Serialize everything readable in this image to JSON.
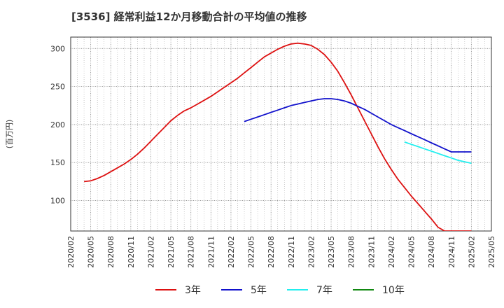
{
  "chart_data": {
    "type": "line",
    "title": "[3536]  経常利益12か月移動合計の平均値の推移",
    "ylabel": "(百万円)",
    "xlabel": "",
    "ylim": [
      60,
      315
    ],
    "yticks": [
      100,
      150,
      200,
      250,
      300
    ],
    "x_ticks": [
      "2020/02",
      "2020/05",
      "2020/08",
      "2020/11",
      "2021/02",
      "2021/05",
      "2021/08",
      "2021/11",
      "2022/02",
      "2022/05",
      "2022/08",
      "2022/11",
      "2023/02",
      "2023/05",
      "2023/08",
      "2023/11",
      "2024/02",
      "2024/05",
      "2024/08",
      "2024/11",
      "2025/02",
      "2025/05"
    ],
    "grid": true,
    "legend_position": "bottom",
    "series": [
      {
        "name": "3年",
        "color": "#dd1111",
        "x": [
          "2020/04",
          "2020/05",
          "2020/06",
          "2020/07",
          "2020/08",
          "2020/09",
          "2020/10",
          "2020/11",
          "2020/12",
          "2021/01",
          "2021/02",
          "2021/03",
          "2021/04",
          "2021/05",
          "2021/06",
          "2021/07",
          "2021/08",
          "2021/09",
          "2021/10",
          "2021/11",
          "2021/12",
          "2022/01",
          "2022/02",
          "2022/03",
          "2022/04",
          "2022/05",
          "2022/06",
          "2022/07",
          "2022/08",
          "2022/09",
          "2022/10",
          "2022/11",
          "2022/12",
          "2023/01",
          "2023/02",
          "2023/03",
          "2023/04",
          "2023/05",
          "2023/06",
          "2023/07",
          "2023/08",
          "2023/09",
          "2023/10",
          "2023/11",
          "2023/12",
          "2024/01",
          "2024/02",
          "2024/03",
          "2024/04",
          "2024/05",
          "2024/06",
          "2024/07",
          "2024/08",
          "2024/09",
          "2024/10",
          "2024/11",
          "2024/12",
          "2025/01",
          "2025/02"
        ],
        "values": [
          125,
          126,
          129,
          133,
          138,
          143,
          148,
          154,
          161,
          169,
          178,
          187,
          196,
          205,
          212,
          218,
          222,
          227,
          232,
          237,
          243,
          249,
          255,
          261,
          268,
          275,
          282,
          289,
          294,
          299,
          303,
          306,
          307,
          306,
          304,
          299,
          292,
          282,
          270,
          255,
          239,
          222,
          205,
          188,
          171,
          155,
          141,
          128,
          117,
          106,
          96,
          86,
          76,
          65,
          60,
          60,
          60,
          60,
          60
        ]
      },
      {
        "name": "5年",
        "color": "#1111cc",
        "x": [
          "2022/04",
          "2022/05",
          "2022/06",
          "2022/07",
          "2022/08",
          "2022/09",
          "2022/10",
          "2022/11",
          "2022/12",
          "2023/01",
          "2023/02",
          "2023/03",
          "2023/04",
          "2023/05",
          "2023/06",
          "2023/07",
          "2023/08",
          "2023/09",
          "2023/10",
          "2023/11",
          "2023/12",
          "2024/01",
          "2024/02",
          "2024/03",
          "2024/04",
          "2024/05",
          "2024/06",
          "2024/07",
          "2024/08",
          "2024/09",
          "2024/10",
          "2024/11",
          "2024/12",
          "2025/01",
          "2025/02"
        ],
        "values": [
          204,
          207,
          210,
          213,
          216,
          219,
          222,
          225,
          227,
          229,
          231,
          233,
          234,
          234,
          233,
          231,
          228,
          224,
          220,
          215,
          210,
          205,
          200,
          196,
          192,
          188,
          184,
          180,
          176,
          172,
          168,
          164,
          164,
          164,
          164
        ]
      },
      {
        "name": "7年",
        "color": "#22eeee",
        "x": [
          "2024/04",
          "2024/05",
          "2024/06",
          "2024/07",
          "2024/08",
          "2024/09",
          "2024/10",
          "2024/11",
          "2024/12",
          "2025/01",
          "2025/02"
        ],
        "values": [
          177,
          174,
          171,
          168,
          165,
          162,
          159,
          156,
          153,
          151,
          149
        ]
      },
      {
        "name": "10年",
        "color": "#118811",
        "x": [],
        "values": []
      }
    ]
  }
}
